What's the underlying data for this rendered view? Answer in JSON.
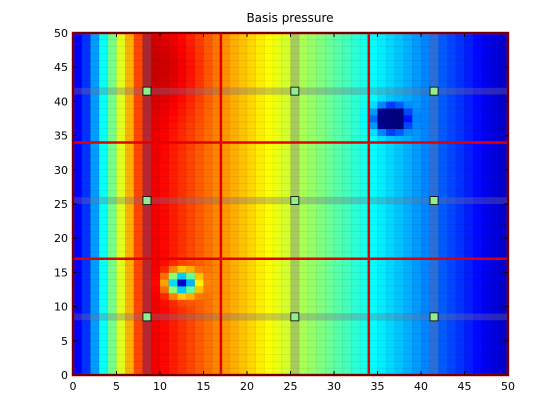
{
  "chart_data": {
    "type": "heatmap",
    "title": "Basis pressure",
    "xlabel": "",
    "ylabel": "",
    "xlim": [
      0,
      50
    ],
    "ylim": [
      0,
      50
    ],
    "xticks": [
      "0",
      "5",
      "10",
      "15",
      "20",
      "25",
      "30",
      "35",
      "40",
      "45",
      "50"
    ],
    "yticks": [
      "0",
      "5",
      "10",
      "15",
      "20",
      "25",
      "30",
      "35",
      "40",
      "45",
      "50"
    ],
    "grid_resolution": [
      50,
      50
    ],
    "colormap": "jet",
    "coarse_partition_lines": {
      "x": [
        17,
        34
      ],
      "y": [
        17,
        34
      ]
    },
    "basis_centers": [
      {
        "x": 8.5,
        "y": 8.5
      },
      {
        "x": 25.5,
        "y": 8.5
      },
      {
        "x": 41.5,
        "y": 8.5
      },
      {
        "x": 8.5,
        "y": 25.5
      },
      {
        "x": 25.5,
        "y": 25.5
      },
      {
        "x": 41.5,
        "y": 25.5
      },
      {
        "x": 8.5,
        "y": 41.5
      },
      {
        "x": 25.5,
        "y": 41.5
      },
      {
        "x": 41.5,
        "y": 41.5
      }
    ],
    "wells": [
      {
        "x": 12.5,
        "y": 13.5
      },
      {
        "x": 36.5,
        "y": 37.5
      }
    ],
    "colors": {
      "partition_line": "#e00000",
      "marker_fill": "#90ee90",
      "marker_edge": "#000000",
      "axis": "#000000"
    }
  }
}
